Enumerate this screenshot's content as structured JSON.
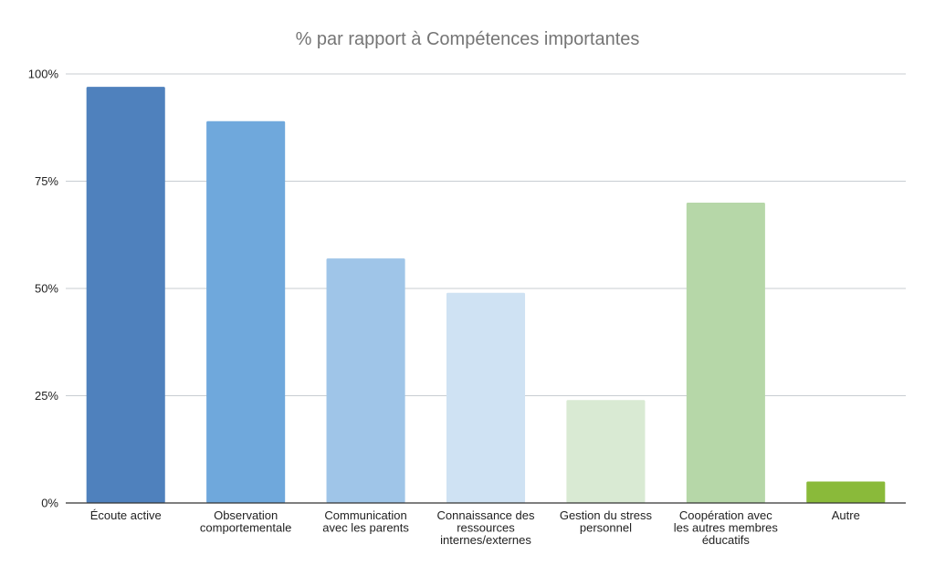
{
  "chart_data": {
    "type": "bar",
    "title": "% par rapport à Compétences importantes",
    "xlabel": "",
    "ylabel": "",
    "ylim": [
      0,
      100
    ],
    "y_ticks": [
      "0%",
      "25%",
      "50%",
      "75%",
      "100%"
    ],
    "grid": true,
    "legend": "none",
    "categories": [
      "Écoute active",
      "Observation comportementale",
      "Communication avec les parents",
      "Connaissance des ressources internes/externes",
      "Gestion du stress personnel",
      "Coopération avec les autres membres éducatifs",
      "Autre"
    ],
    "category_lines": [
      [
        "Écoute active"
      ],
      [
        "Observation",
        "comportementale"
      ],
      [
        "Communication",
        "avec les parents"
      ],
      [
        "Connaissance des",
        "ressources",
        "internes/externes"
      ],
      [
        "Gestion du stress",
        "personnel"
      ],
      [
        "Coopération avec",
        "les autres membres",
        "éducatifs"
      ],
      [
        "Autre"
      ]
    ],
    "values": [
      97,
      89,
      57,
      49,
      24,
      70,
      5
    ],
    "colors": [
      "#4f81bd",
      "#6fa8dc",
      "#9fc5e8",
      "#cfe2f3",
      "#d9ead3",
      "#b6d7a8",
      "#8aba3a"
    ]
  }
}
